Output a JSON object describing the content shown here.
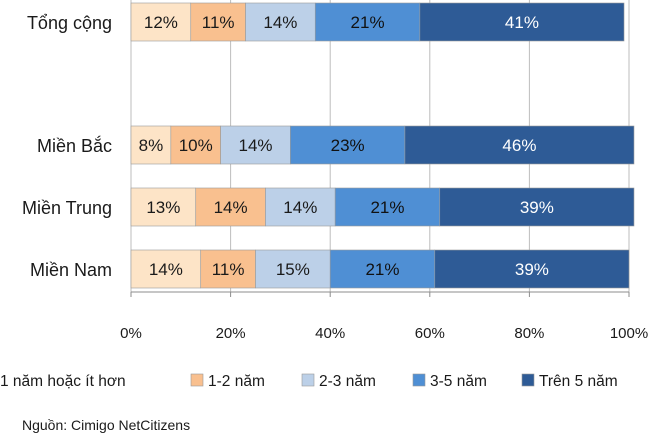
{
  "chart_data": {
    "type": "bar",
    "orientation": "horizontal",
    "stacked": true,
    "categories": [
      "Tổng cộng",
      "Miền Bắc",
      "Miền Trung",
      "Miền Nam"
    ],
    "series": [
      {
        "name": "1 năm hoặc ít hơn",
        "values": [
          12,
          8,
          13,
          14
        ],
        "labels": [
          "12%",
          "8%",
          "13%",
          "14%"
        ],
        "color": "#fde4c7",
        "text_color": "#1a1a1a"
      },
      {
        "name": "1-2 năm",
        "values": [
          11,
          10,
          14,
          11
        ],
        "labels": [
          "11%",
          "10%",
          "14%",
          "11%"
        ],
        "color": "#f9c08f",
        "text_color": "#1a1a1a"
      },
      {
        "name": "2-3 năm",
        "values": [
          14,
          14,
          14,
          15
        ],
        "labels": [
          "14%",
          "14%",
          "14%",
          "15%"
        ],
        "color": "#bcd0e8",
        "text_color": "#1a1a1a"
      },
      {
        "name": "3-5 năm",
        "values": [
          21,
          23,
          21,
          21
        ],
        "labels": [
          "21%",
          "23%",
          "21%",
          "21%"
        ],
        "color": "#4f8fd4",
        "text_color": "#111111"
      },
      {
        "name": "Trên 5 năm",
        "values": [
          41,
          46,
          39,
          39
        ],
        "labels": [
          "41%",
          "46%",
          "39%",
          "39%"
        ],
        "color": "#2e5b96",
        "text_color": "#ffffff"
      }
    ],
    "xlim": [
      0,
      100
    ],
    "x_ticks": [
      0,
      20,
      40,
      60,
      80,
      100
    ],
    "x_tick_labels": [
      "0%",
      "20%",
      "40%",
      "60%",
      "80%",
      "100%"
    ],
    "grid": true,
    "legend": "bottom"
  },
  "source": "Nguồn: Cimigo NetCitizens"
}
